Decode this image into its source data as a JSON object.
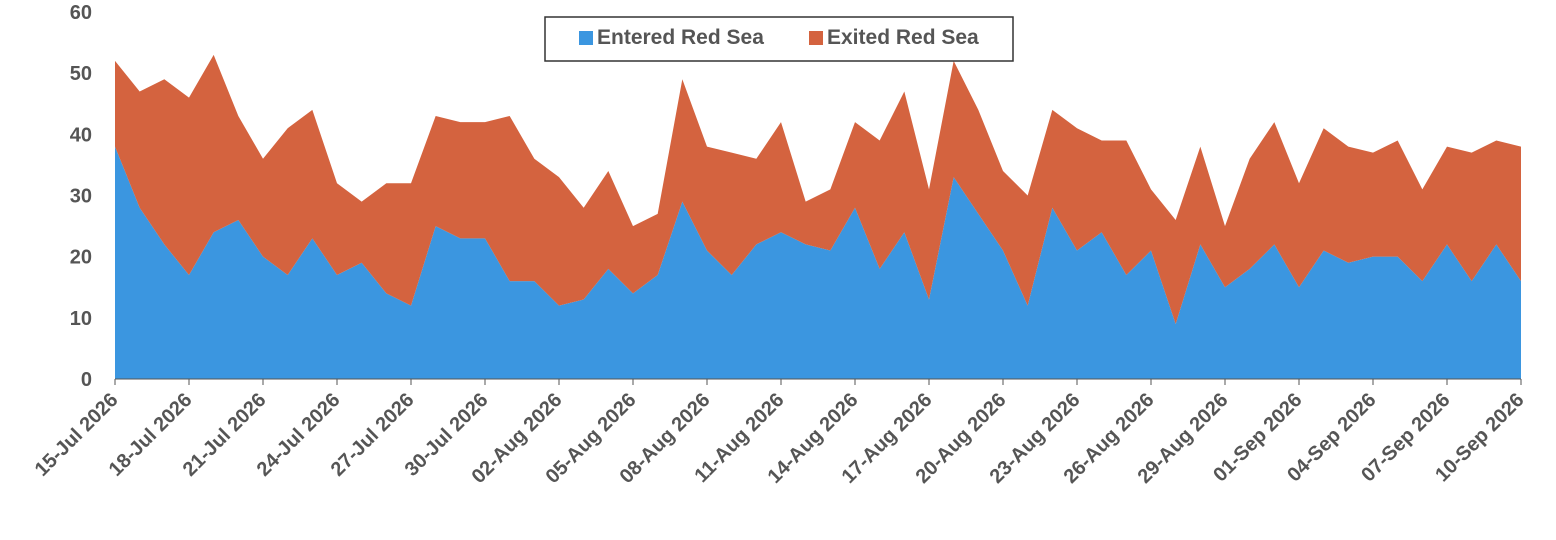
{
  "chart_data": {
    "type": "area",
    "stacked": true,
    "x": [
      "15-Jul 2026",
      "16-Jul 2026",
      "17-Jul 2026",
      "18-Jul 2026",
      "19-Jul 2026",
      "20-Jul 2026",
      "21-Jul 2026",
      "22-Jul 2026",
      "23-Jul 2026",
      "24-Jul 2026",
      "25-Jul 2026",
      "26-Jul 2026",
      "27-Jul 2026",
      "28-Jul 2026",
      "29-Jul 2026",
      "30-Jul 2026",
      "31-Jul 2026",
      "01-Aug 2026",
      "02-Aug 2026",
      "03-Aug 2026",
      "04-Aug 2026",
      "05-Aug 2026",
      "06-Aug 2026",
      "07-Aug 2026",
      "08-Aug 2026",
      "09-Aug 2026",
      "10-Aug 2026",
      "11-Aug 2026",
      "12-Aug 2026",
      "13-Aug 2026",
      "14-Aug 2026",
      "15-Aug 2026",
      "16-Aug 2026",
      "17-Aug 2026",
      "18-Aug 2026",
      "19-Aug 2026",
      "20-Aug 2026",
      "21-Aug 2026",
      "22-Aug 2026",
      "23-Aug 2026",
      "24-Aug 2026",
      "25-Aug 2026",
      "26-Aug 2026",
      "27-Aug 2026",
      "28-Aug 2026",
      "29-Aug 2026",
      "30-Aug 2026",
      "31-Aug 2026",
      "01-Sep 2026",
      "02-Sep 2026",
      "03-Sep 2026",
      "04-Sep 2026",
      "05-Sep 2026",
      "06-Sep 2026",
      "07-Sep 2026",
      "08-Sep 2026",
      "09-Sep 2026",
      "10-Sep 2026"
    ],
    "x_tick_labels": [
      "15-Jul 2026",
      "18-Jul 2026",
      "21-Jul 2026",
      "24-Jul 2026",
      "27-Jul 2026",
      "30-Jul 2026",
      "02-Aug 2026",
      "05-Aug 2026",
      "08-Aug 2026",
      "11-Aug 2026",
      "14-Aug 2026",
      "17-Aug 2026",
      "20-Aug 2026",
      "23-Aug 2026",
      "26-Aug 2026",
      "29-Aug 2026",
      "01-Sep 2026",
      "04-Sep 2026",
      "07-Sep 2026",
      "10-Sep 2026"
    ],
    "series": [
      {
        "name": "Entered Red Sea",
        "color": "#3b96e0",
        "values": [
          38,
          28,
          22,
          17,
          24,
          26,
          20,
          17,
          23,
          17,
          19,
          14,
          12,
          25,
          23,
          23,
          16,
          16,
          12,
          13,
          18,
          14,
          17,
          29,
          21,
          17,
          22,
          24,
          22,
          21,
          28,
          18,
          24,
          13,
          33,
          27,
          21,
          12,
          28,
          21,
          24,
          17,
          21,
          9,
          22,
          15,
          18,
          22,
          15,
          21,
          19,
          20,
          20,
          16,
          22,
          16,
          22,
          16
        ]
      },
      {
        "name": "Exited Red Sea",
        "color": "#d4633f",
        "values": [
          14,
          19,
          27,
          29,
          29,
          17,
          16,
          24,
          21,
          15,
          10,
          18,
          20,
          18,
          19,
          19,
          27,
          20,
          21,
          15,
          16,
          11,
          10,
          20,
          17,
          20,
          14,
          18,
          7,
          10,
          14,
          21,
          23,
          18,
          19,
          17,
          13,
          18,
          16,
          20,
          15,
          22,
          10,
          17,
          16,
          10,
          18,
          20,
          17,
          20,
          19,
          17,
          19,
          15,
          16,
          21,
          17,
          22
        ]
      }
    ],
    "ylim": [
      0,
      60
    ],
    "yticks": [
      0,
      10,
      20,
      30,
      40,
      50,
      60
    ],
    "title": "",
    "xlabel": "",
    "ylabel": "",
    "grid": false,
    "legend_position": "top-center"
  }
}
